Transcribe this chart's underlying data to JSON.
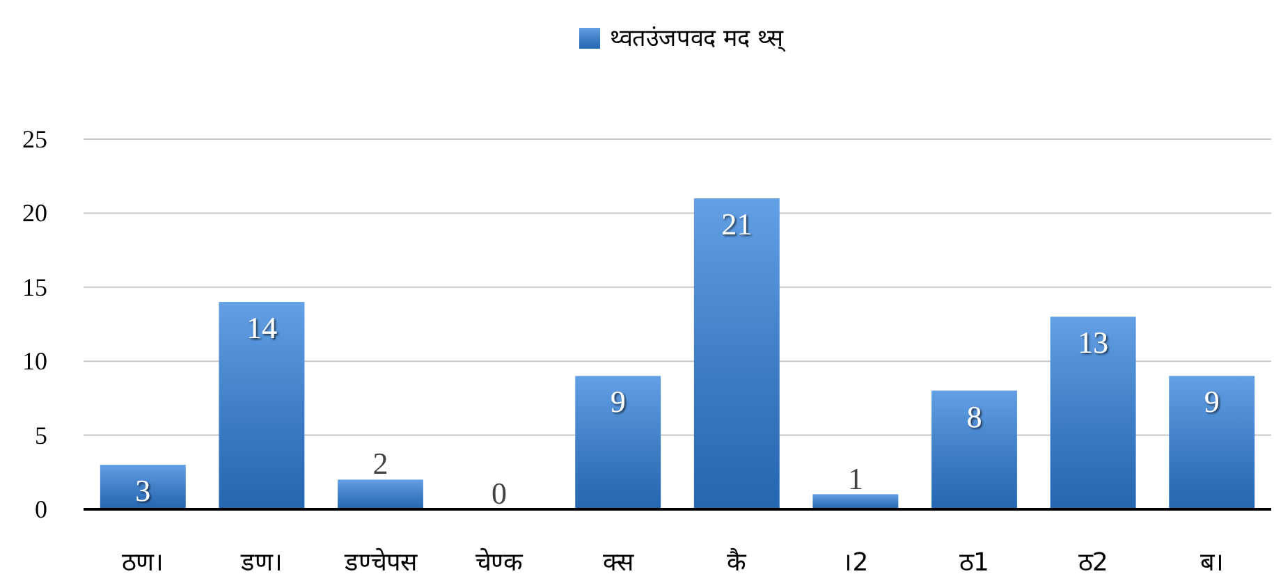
{
  "chart_data": {
    "type": "bar",
    "categories": [
      "ठण।",
      "डण।",
      "डण्चेपस",
      "चेण्क",
      "क्स",
      "कै",
      "।2",
      "ठ1",
      "ठ2",
      "ब।"
    ],
    "series": [
      {
        "name": "थ्वतउंजपवद मद थ्स्",
        "color": "#2f80dd",
        "values": [
          3,
          14,
          2,
          0,
          9,
          21,
          1,
          8,
          13,
          9
        ]
      }
    ],
    "ylim": [
      0,
      25
    ],
    "yticks": [
      0,
      5,
      10,
      15,
      20,
      25
    ],
    "grid": "y",
    "legend": "top",
    "data_labels": true
  }
}
